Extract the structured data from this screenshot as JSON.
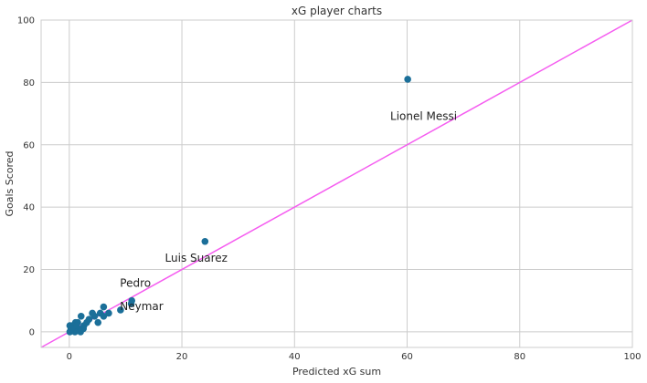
{
  "chart_data": {
    "type": "scatter",
    "title": "xG player charts",
    "xlabel": "Predicted xG sum",
    "ylabel": "Goals Scored",
    "xlim": [
      -5,
      100
    ],
    "ylim": [
      -5,
      100
    ],
    "xticks": [
      0,
      20,
      40,
      60,
      80,
      100
    ],
    "yticks": [
      0,
      20,
      40,
      60,
      80,
      100
    ],
    "grid": true,
    "colors": {
      "points": "#1b6f99",
      "reference_line": "#f55cf0",
      "grid": "#cccccc",
      "spine": "#cccccc"
    },
    "reference_line": {
      "x": [
        -5,
        100
      ],
      "y": [
        -5,
        100
      ]
    },
    "points": [
      {
        "x": 60.1,
        "y": 81
      },
      {
        "x": 24.1,
        "y": 29
      },
      {
        "x": 11.1,
        "y": 10
      },
      {
        "x": 11.0,
        "y": 9
      },
      {
        "x": 9.1,
        "y": 7
      },
      {
        "x": 7.0,
        "y": 6
      },
      {
        "x": 6.1,
        "y": 8
      },
      {
        "x": 6.1,
        "y": 5
      },
      {
        "x": 5.5,
        "y": 6
      },
      {
        "x": 5.1,
        "y": 3
      },
      {
        "x": 4.5,
        "y": 5
      },
      {
        "x": 4.1,
        "y": 6
      },
      {
        "x": 3.1,
        "y": 3
      },
      {
        "x": 2.6,
        "y": 2
      },
      {
        "x": 2.1,
        "y": 5
      },
      {
        "x": 2.0,
        "y": 0
      },
      {
        "x": 1.6,
        "y": 1
      },
      {
        "x": 1.5,
        "y": 3
      },
      {
        "x": 1.1,
        "y": 3
      },
      {
        "x": 1.0,
        "y": 0
      },
      {
        "x": 0.6,
        "y": 2
      },
      {
        "x": 0.5,
        "y": 1
      },
      {
        "x": 0.1,
        "y": 0
      },
      {
        "x": 0.1,
        "y": 2
      },
      {
        "x": 2.5,
        "y": 1
      },
      {
        "x": 3.5,
        "y": 4
      },
      {
        "x": 0.3,
        "y": 1
      },
      {
        "x": 1.3,
        "y": 2
      }
    ],
    "annotations": [
      {
        "text": "Lionel Messi",
        "x": 57.0,
        "y": 68.0
      },
      {
        "text": "Luis Suarez",
        "x": 17.0,
        "y": 22.5
      },
      {
        "text": "Pedro",
        "x": 9.0,
        "y": 14.5
      },
      {
        "text": "Neymar",
        "x": 9.0,
        "y": 7.0
      }
    ]
  }
}
